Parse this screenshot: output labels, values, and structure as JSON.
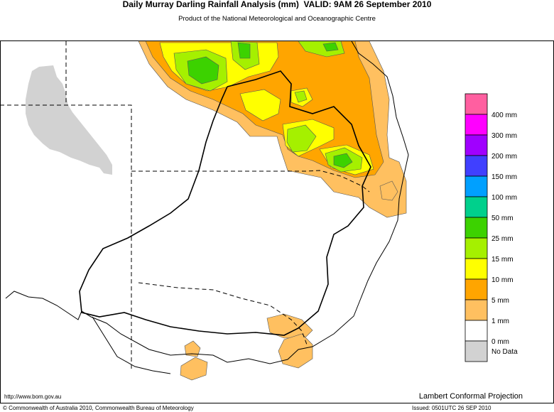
{
  "header": {
    "title": "Daily Murray Darling Rainfall Analysis (mm)  VALID: 9AM 26 September 2010",
    "subtitle": "Product of the National Meteorological and Oceanographic Centre"
  },
  "legend": {
    "colors": [
      "#ff5fa0",
      "#ff00ff",
      "#a000ff",
      "#4040ff",
      "#00a0ff",
      "#00d08c",
      "#3cd200",
      "#a5f000",
      "#ffff00",
      "#ffa500",
      "#ffc060",
      "#ffffff",
      "#d2d2d2"
    ],
    "labels": [
      "400 mm",
      "300 mm",
      "200 mm",
      "150 mm",
      "100 mm",
      "50 mm",
      "25 mm",
      "15 mm",
      "10 mm",
      "5 mm",
      "1 mm",
      "0 mm",
      "No Data"
    ]
  },
  "footer": {
    "url": "http://www.bom.gov.au",
    "projection": "Lambert Conformal Projection",
    "copyright": "© Commonwealth of Australia 2010, Commonwealth Bureau of Meteorology",
    "issued": "Issued: 0501UTC 26 SEP 2010"
  }
}
